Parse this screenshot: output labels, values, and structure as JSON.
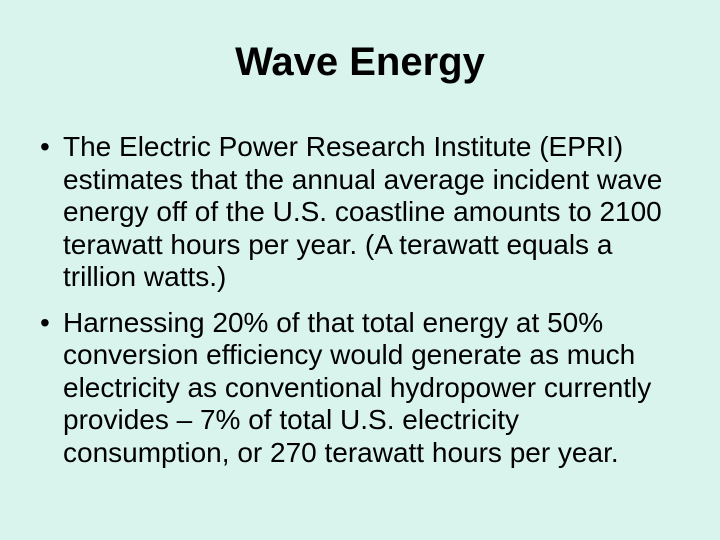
{
  "slide": {
    "title": "Wave Energy",
    "bullet_char": "•",
    "bullets": [
      {
        "lines": [
          "The Electric Power Research Institute (EPRI)",
          "estimates that the annual average incident wave",
          "energy off of the U.S. coastline amounts to 2100",
          "terawatt hours per year. (A terawatt equals a",
          "trillion watts.)"
        ]
      },
      {
        "lines": [
          "Harnessing 20% of that total energy at 50%",
          "conversion efficiency would generate as much",
          "electricity as conventional hydropower currently",
          "provides – 7% of total U.S. electricity",
          "consumption, or 270 terawatt hours per year."
        ]
      }
    ],
    "colors": {
      "background": "#D9F3ED",
      "text": "#000000"
    }
  }
}
